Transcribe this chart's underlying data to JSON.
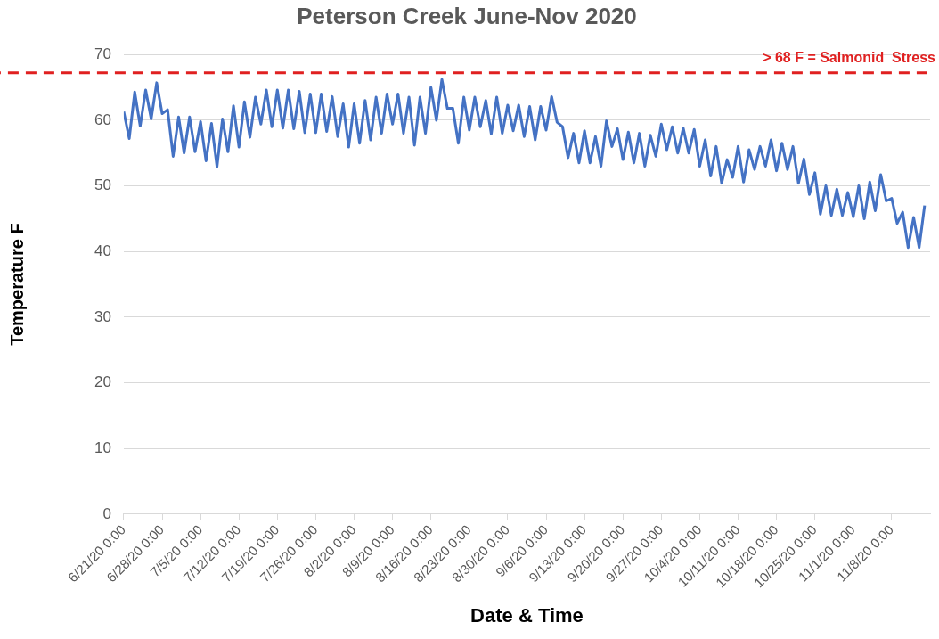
{
  "chart_data": {
    "type": "line",
    "title": "Peterson Creek June-Nov 2020",
    "xlabel": "Date & Time",
    "ylabel": "Temperature F",
    "x": [
      "2020-06-21",
      "2020-06-22",
      "2020-06-23",
      "2020-06-24",
      "2020-06-25",
      "2020-06-26",
      "2020-06-27",
      "2020-06-28",
      "2020-06-29",
      "2020-06-30",
      "2020-07-01",
      "2020-07-02",
      "2020-07-03",
      "2020-07-04",
      "2020-07-05",
      "2020-07-06",
      "2020-07-07",
      "2020-07-08",
      "2020-07-09",
      "2020-07-10",
      "2020-07-11",
      "2020-07-12",
      "2020-07-13",
      "2020-07-14",
      "2020-07-15",
      "2020-07-16",
      "2020-07-17",
      "2020-07-18",
      "2020-07-19",
      "2020-07-20",
      "2020-07-21",
      "2020-07-22",
      "2020-07-23",
      "2020-07-24",
      "2020-07-25",
      "2020-07-26",
      "2020-07-27",
      "2020-07-28",
      "2020-07-29",
      "2020-07-30",
      "2020-07-31",
      "2020-08-01",
      "2020-08-02",
      "2020-08-03",
      "2020-08-04",
      "2020-08-05",
      "2020-08-06",
      "2020-08-07",
      "2020-08-08",
      "2020-08-09",
      "2020-08-10",
      "2020-08-11",
      "2020-08-12",
      "2020-08-13",
      "2020-08-14",
      "2020-08-15",
      "2020-08-16",
      "2020-08-17",
      "2020-08-18",
      "2020-08-19",
      "2020-08-20",
      "2020-08-21",
      "2020-08-22",
      "2020-08-23",
      "2020-08-24",
      "2020-08-25",
      "2020-08-26",
      "2020-08-27",
      "2020-08-28",
      "2020-08-29",
      "2020-08-30",
      "2020-08-31",
      "2020-09-01",
      "2020-09-02",
      "2020-09-03",
      "2020-09-04",
      "2020-09-05",
      "2020-09-06",
      "2020-09-07",
      "2020-09-08",
      "2020-09-09",
      "2020-09-10",
      "2020-09-11",
      "2020-09-12",
      "2020-09-13",
      "2020-09-14",
      "2020-09-15",
      "2020-09-16",
      "2020-09-17",
      "2020-09-18",
      "2020-09-19",
      "2020-09-20",
      "2020-09-21",
      "2020-09-22",
      "2020-09-23",
      "2020-09-24",
      "2020-09-25",
      "2020-09-26",
      "2020-09-27",
      "2020-09-28",
      "2020-09-29",
      "2020-09-30",
      "2020-10-01",
      "2020-10-02",
      "2020-10-03",
      "2020-10-04",
      "2020-10-05",
      "2020-10-06",
      "2020-10-07",
      "2020-10-08",
      "2020-10-09",
      "2020-10-10",
      "2020-10-11",
      "2020-10-12",
      "2020-10-13",
      "2020-10-14",
      "2020-10-15",
      "2020-10-16",
      "2020-10-17",
      "2020-10-18",
      "2020-10-19",
      "2020-10-20",
      "2020-10-21",
      "2020-10-22",
      "2020-10-23",
      "2020-10-24",
      "2020-10-25",
      "2020-10-26",
      "2020-10-27",
      "2020-10-28",
      "2020-10-29",
      "2020-10-30",
      "2020-10-31",
      "2020-11-01",
      "2020-11-02",
      "2020-11-03",
      "2020-11-04",
      "2020-11-05",
      "2020-11-06",
      "2020-11-07",
      "2020-11-08",
      "2020-11-09",
      "2020-11-10",
      "2020-11-11",
      "2020-11-12",
      "2020-11-13",
      "2020-11-14"
    ],
    "series": [
      {
        "color": "#4472c4",
        "values": [
          61.3,
          57.2,
          64.3,
          59.1,
          64.6,
          60.2,
          65.7,
          61.0,
          61.6,
          54.5,
          60.5,
          55.0,
          60.5,
          55.2,
          59.8,
          53.8,
          59.5,
          52.9,
          60.2,
          55.2,
          62.2,
          55.9,
          62.8,
          57.4,
          63.5,
          59.4,
          64.6,
          59.0,
          64.6,
          58.8,
          64.6,
          58.7,
          64.4,
          58.1,
          64.0,
          58.1,
          64.0,
          58.3,
          63.6,
          57.5,
          62.5,
          55.9,
          62.5,
          56.5,
          63.0,
          57.0,
          63.5,
          58.0,
          64.0,
          59.4,
          64.0,
          58.0,
          63.5,
          56.2,
          63.5,
          58.0,
          65.0,
          60.0,
          66.2,
          61.8,
          61.8,
          56.5,
          63.5,
          58.5,
          63.5,
          59.0,
          63.0,
          57.9,
          63.5,
          58.0,
          62.3,
          58.4,
          62.3,
          57.5,
          62.1,
          57.0,
          62.1,
          58.5,
          63.6,
          59.7,
          59.0,
          54.3,
          58.0,
          53.5,
          58.4,
          53.5,
          57.5,
          53.0,
          59.9,
          56.0,
          58.7,
          54.0,
          58.2,
          53.5,
          58.0,
          53.0,
          57.7,
          54.5,
          59.4,
          55.5,
          59.0,
          55.0,
          58.8,
          55.0,
          58.6,
          53.0,
          57.0,
          51.5,
          56.0,
          50.4,
          54.0,
          51.3,
          56.0,
          50.6,
          55.5,
          52.5,
          56.0,
          53.0,
          57.0,
          52.3,
          56.5,
          52.5,
          56.0,
          50.4,
          54.1,
          48.7,
          52.0,
          45.7,
          50.0,
          45.5,
          49.5,
          45.5,
          49.0,
          45.3,
          50.0,
          45.0,
          50.6,
          46.2,
          51.7,
          47.7,
          48.1,
          44.3,
          46.0,
          40.6,
          45.2,
          40.6,
          47.0
        ]
      }
    ],
    "xlim": [
      "2020-06-21",
      "2020-11-15"
    ],
    "xticks": [
      {
        "value": "2020-06-21",
        "label": "6/21/20 0:00"
      },
      {
        "value": "2020-06-28",
        "label": "6/28/20 0:00"
      },
      {
        "value": "2020-07-05",
        "label": "7/5/20 0:00"
      },
      {
        "value": "2020-07-12",
        "label": "7/12/20 0:00"
      },
      {
        "value": "2020-07-19",
        "label": "7/19/20 0:00"
      },
      {
        "value": "2020-07-26",
        "label": "7/26/20 0:00"
      },
      {
        "value": "2020-08-02",
        "label": "8/2/20 0:00"
      },
      {
        "value": "2020-08-09",
        "label": "8/9/20 0:00"
      },
      {
        "value": "2020-08-16",
        "label": "8/16/20 0:00"
      },
      {
        "value": "2020-08-23",
        "label": "8/23/20 0:00"
      },
      {
        "value": "2020-08-30",
        "label": "8/30/20 0:00"
      },
      {
        "value": "2020-09-06",
        "label": "9/6/20 0:00"
      },
      {
        "value": "2020-09-13",
        "label": "9/13/20 0:00"
      },
      {
        "value": "2020-09-20",
        "label": "9/20/20 0:00"
      },
      {
        "value": "2020-09-27",
        "label": "9/27/20 0:00"
      },
      {
        "value": "2020-10-04",
        "label": "10/4/20 0:00"
      },
      {
        "value": "2020-10-11",
        "label": "10/11/20 0:00"
      },
      {
        "value": "2020-10-18",
        "label": "10/18/20 0:00"
      },
      {
        "value": "2020-10-25",
        "label": "10/25/20 0:00"
      },
      {
        "value": "2020-11-01",
        "label": "11/1/20 0:00"
      },
      {
        "value": "2020-11-08",
        "label": "11/8/20 0:00"
      }
    ],
    "ylim": [
      0,
      70
    ],
    "yticks": [
      0,
      10,
      20,
      30,
      40,
      50,
      60,
      70
    ],
    "grid": "y",
    "legend": false,
    "marker": "none",
    "line_style": "solid",
    "ref_lines": [
      {
        "axis": "y",
        "value": 67.2,
        "label": "> 68 F = Salmonid  Stress",
        "color": "#e02020",
        "line_style": "dashed"
      }
    ]
  }
}
